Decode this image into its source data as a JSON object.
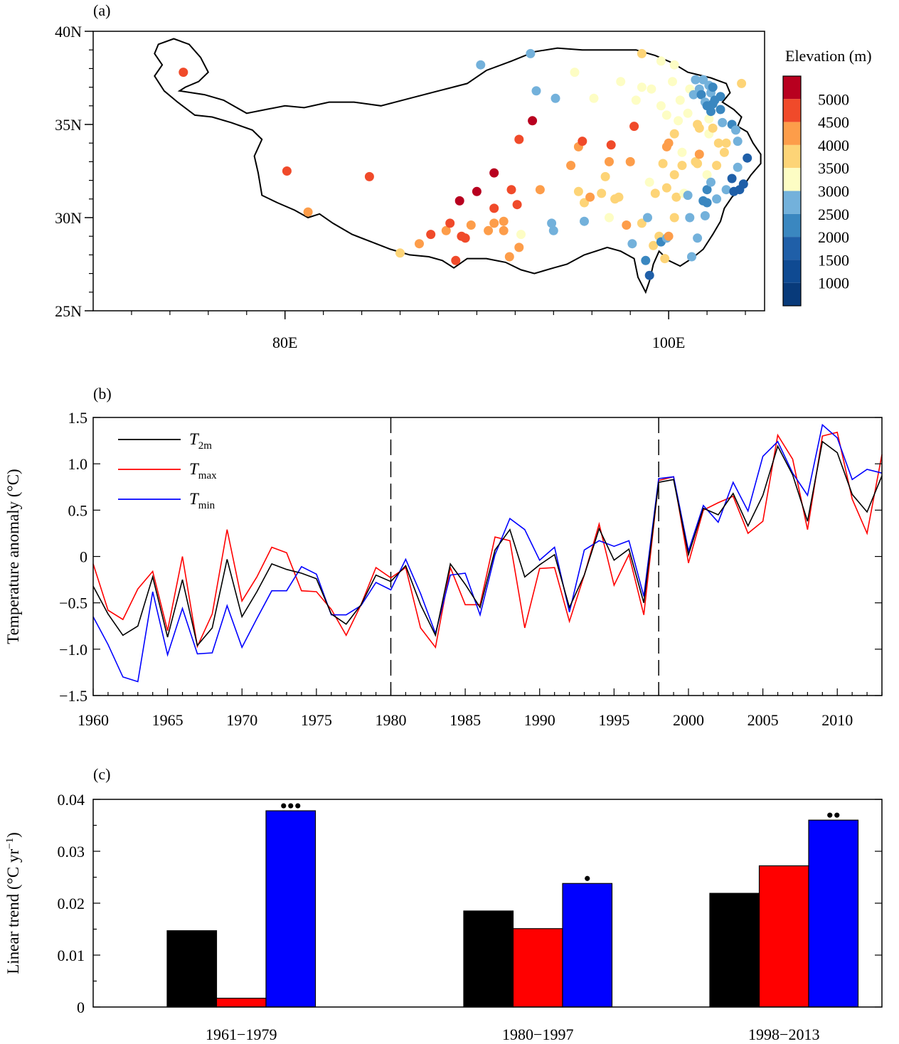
{
  "panel_labels": {
    "a": "(a)",
    "b": "(b)",
    "c": "(c)"
  },
  "chart_data": [
    {
      "type": "scatter",
      "panel": "(a)",
      "description_of_points": "station locations colored by elevation",
      "lat_ticks": [
        "25N",
        "30N",
        "35N",
        "40N"
      ],
      "lat_tick_values": [
        25,
        30,
        35,
        40
      ],
      "lon_ticks": [
        "80E",
        "100E"
      ],
      "lon_tick_values": [
        80,
        100
      ],
      "xlim": [
        70,
        105
      ],
      "ylim": [
        25,
        40
      ],
      "colorbar": {
        "title": "Elevation (m)",
        "labels": [
          "5000",
          "4500",
          "4000",
          "3500",
          "3000",
          "2500",
          "2000",
          "1500",
          "1000"
        ],
        "colors": [
          "#ffffff"
        ]
      },
      "stations": [
        [
          74.7,
          37.8,
          4500
        ],
        [
          80.1,
          32.5,
          4300
        ],
        [
          81.2,
          30.3,
          4000
        ],
        [
          84.4,
          32.2,
          4400
        ],
        [
          86.0,
          28.1,
          3500
        ],
        [
          87.0,
          28.6,
          4200
        ],
        [
          87.6,
          29.1,
          4300
        ],
        [
          88.4,
          29.3,
          4000
        ],
        [
          88.6,
          29.7,
          4300
        ],
        [
          88.9,
          27.7,
          4300
        ],
        [
          89.2,
          29.0,
          4500
        ],
        [
          89.7,
          29.6,
          3800
        ],
        [
          89.4,
          28.9,
          4300
        ],
        [
          89.1,
          30.9,
          4800
        ],
        [
          90.0,
          31.4,
          4800
        ],
        [
          90.2,
          38.2,
          2700
        ],
        [
          90.6,
          29.3,
          3800
        ],
        [
          90.9,
          30.5,
          4400
        ],
        [
          90.9,
          32.4,
          4800
        ],
        [
          90.9,
          29.7,
          3900
        ],
        [
          91.4,
          29.3,
          3800
        ],
        [
          91.4,
          29.8,
          3900
        ],
        [
          91.7,
          27.9,
          4200
        ],
        [
          91.8,
          31.5,
          4700
        ],
        [
          92.2,
          28.4,
          3800
        ],
        [
          92.3,
          29.1,
          3200
        ],
        [
          92.2,
          34.2,
          4700
        ],
        [
          92.9,
          35.2,
          4800
        ],
        [
          92.1,
          30.7,
          4300
        ],
        [
          92.8,
          38.8,
          2700
        ],
        [
          93.1,
          36.8,
          2700
        ],
        [
          93.3,
          31.5,
          3900
        ],
        [
          94.0,
          29.3,
          2500
        ],
        [
          93.9,
          29.7,
          2400
        ],
        [
          94.1,
          36.4,
          2700
        ],
        [
          94.9,
          32.8,
          4000
        ],
        [
          95.1,
          37.8,
          3200
        ],
        [
          95.3,
          31.4,
          3700
        ],
        [
          95.3,
          33.8,
          4200
        ],
        [
          95.5,
          34.1,
          4300
        ],
        [
          95.6,
          30.8,
          3600
        ],
        [
          95.6,
          29.8,
          2500
        ],
        [
          95.9,
          31.1,
          3800
        ],
        [
          96.1,
          36.4,
          2900
        ],
        [
          96.5,
          31.3,
          3700
        ],
        [
          96.7,
          32.2,
          3500
        ],
        [
          96.9,
          33.0,
          3800
        ],
        [
          97.0,
          33.9,
          4300
        ],
        [
          97.4,
          31.1,
          3300
        ],
        [
          96.9,
          30.0,
          3100
        ],
        [
          97.2,
          31.0,
          3500
        ],
        [
          97.5,
          37.3,
          2800
        ],
        [
          97.8,
          29.6,
          3800
        ],
        [
          98.0,
          33.0,
          4200
        ],
        [
          98.1,
          28.6,
          2300
        ],
        [
          98.3,
          36.3,
          3000
        ],
        [
          98.2,
          34.9,
          4300
        ],
        [
          98.6,
          37.0,
          2800
        ],
        [
          98.6,
          38.8,
          3300
        ],
        [
          99.0,
          31.9,
          3200
        ],
        [
          98.6,
          29.7,
          3300
        ],
        [
          98.9,
          30.0,
          2600
        ],
        [
          98.8,
          27.7,
          1900
        ],
        [
          99.0,
          26.9,
          1600
        ],
        [
          99.1,
          36.9,
          3000
        ],
        [
          99.3,
          31.3,
          3300
        ],
        [
          99.2,
          28.5,
          3300
        ],
        [
          99.5,
          29.0,
          3400
        ],
        [
          99.6,
          28.7,
          2200
        ],
        [
          99.7,
          32.9,
          3700
        ],
        [
          99.8,
          27.8,
          3300
        ],
        [
          99.9,
          28.9,
          2700
        ],
        [
          99.6,
          38.4,
          3200
        ],
        [
          99.6,
          36.0,
          3100
        ],
        [
          99.9,
          33.8,
          3800
        ],
        [
          99.9,
          35.5,
          3200
        ],
        [
          100.0,
          34.0,
          4000
        ],
        [
          100.0,
          29.0,
          3800
        ],
        [
          99.9,
          31.6,
          3300
        ],
        [
          100.2,
          37.3,
          3200
        ],
        [
          100.3,
          38.2,
          3000
        ],
        [
          100.3,
          32.3,
          3700
        ],
        [
          100.4,
          31.1,
          3300
        ],
        [
          100.3,
          34.5,
          3700
        ],
        [
          100.3,
          30.0,
          3600
        ],
        [
          100.5,
          35.2,
          3100
        ],
        [
          100.6,
          36.3,
          2800
        ],
        [
          100.7,
          33.5,
          3200
        ],
        [
          100.7,
          32.8,
          3600
        ],
        [
          100.8,
          31.3,
          3200
        ],
        [
          101.0,
          35.6,
          3200
        ],
        [
          101.1,
          30.0,
          2700
        ],
        [
          101.0,
          31.2,
          2600
        ],
        [
          101.1,
          36.9,
          3200
        ],
        [
          101.2,
          27.9,
          2400
        ],
        [
          101.3,
          36.6,
          2300
        ],
        [
          101.4,
          33.0,
          3300
        ],
        [
          101.5,
          35.0,
          3700
        ],
        [
          101.5,
          32.9,
          3400
        ],
        [
          101.6,
          36.9,
          2400
        ],
        [
          101.6,
          34.8,
          3600
        ],
        [
          101.6,
          33.4,
          4000
        ],
        [
          101.5,
          28.9,
          2400
        ],
        [
          101.7,
          36.6,
          2200
        ],
        [
          101.8,
          37.4,
          2700
        ],
        [
          101.8,
          30.9,
          1800
        ],
        [
          101.9,
          36.2,
          2400
        ],
        [
          101.9,
          30.1,
          2500
        ],
        [
          102.0,
          32.3,
          3100
        ],
        [
          102.0,
          31.5,
          1900
        ],
        [
          102.0,
          30.8,
          2200
        ],
        [
          102.1,
          34.5,
          3000
        ],
        [
          102.1,
          37.1,
          2500
        ],
        [
          102.1,
          35.3,
          3000
        ],
        [
          102.2,
          35.7,
          2200
        ],
        [
          102.2,
          36.7,
          2300
        ],
        [
          102.2,
          31.9,
          2600
        ],
        [
          102.3,
          34.8,
          3300
        ],
        [
          102.3,
          36.1,
          1900
        ],
        [
          102.3,
          37.0,
          2200
        ],
        [
          102.4,
          36.3,
          2000
        ],
        [
          102.5,
          32.8,
          3500
        ],
        [
          102.6,
          34.0,
          3500
        ],
        [
          102.5,
          31.0,
          2300
        ],
        [
          102.7,
          36.5,
          2200
        ],
        [
          102.7,
          35.8,
          2200
        ],
        [
          102.8,
          35.1,
          2600
        ],
        [
          102.9,
          33.5,
          3500
        ],
        [
          103.0,
          34.0,
          3600
        ],
        [
          103.0,
          31.5,
          2400
        ],
        [
          103.3,
          35.0,
          2100
        ],
        [
          103.3,
          32.1,
          1500
        ],
        [
          103.4,
          31.4,
          1700
        ],
        [
          103.5,
          34.7,
          2500
        ],
        [
          103.6,
          32.7,
          2600
        ],
        [
          103.6,
          34.1,
          2300
        ],
        [
          103.7,
          31.5,
          1500
        ],
        [
          103.9,
          31.8,
          1400
        ],
        [
          104.1,
          33.2,
          1300
        ],
        [
          103.8,
          37.2,
          3300
        ],
        [
          102.0,
          36.0,
          2100
        ],
        [
          101.4,
          37.4,
          2600
        ]
      ]
    },
    {
      "type": "line",
      "panel": "(b)",
      "ylabel": "Temperature anomaly (°C)",
      "xlim": [
        1960,
        2013
      ],
      "ylim": [
        -1.5,
        1.5
      ],
      "yticks": [
        "−1.5",
        "−1.0",
        "−0.5",
        "0",
        "0.5",
        "1.0",
        "1.5"
      ],
      "ytick_values": [
        -1.5,
        -1.0,
        -0.5,
        0,
        0.5,
        1.0,
        1.5
      ],
      "xticks": [
        "1960",
        "1965",
        "1970",
        "1975",
        "1980",
        "1985",
        "1990",
        "1995",
        "2000",
        "2005",
        "2010"
      ],
      "xtick_values": [
        1960,
        1965,
        1970,
        1975,
        1980,
        1985,
        1990,
        1995,
        2000,
        2005,
        2010
      ],
      "vlines": [
        1980,
        1998
      ],
      "legend_position": "top-left",
      "x": [
        1960,
        1961,
        1962,
        1963,
        1964,
        1965,
        1966,
        1967,
        1968,
        1969,
        1970,
        1971,
        1972,
        1973,
        1974,
        1975,
        1976,
        1977,
        1978,
        1979,
        1980,
        1981,
        1982,
        1983,
        1984,
        1985,
        1986,
        1987,
        1988,
        1989,
        1990,
        1991,
        1992,
        1993,
        1994,
        1995,
        1996,
        1997,
        1998,
        1999,
        2000,
        2001,
        2002,
        2003,
        2004,
        2005,
        2006,
        2007,
        2008,
        2009,
        2010,
        2011,
        2012,
        2013
      ],
      "series": [
        {
          "name": "T",
          "sub": "2m",
          "color": "#000000",
          "values": [
            -0.32,
            -0.62,
            -0.85,
            -0.75,
            -0.22,
            -0.87,
            -0.25,
            -0.96,
            -0.77,
            -0.03,
            -0.65,
            -0.38,
            -0.08,
            -0.14,
            -0.18,
            -0.24,
            -0.62,
            -0.73,
            -0.52,
            -0.2,
            -0.27,
            -0.1,
            -0.52,
            -0.85,
            -0.08,
            -0.3,
            -0.55,
            0.07,
            0.29,
            -0.22,
            -0.09,
            0.02,
            -0.55,
            -0.2,
            0.3,
            -0.04,
            0.08,
            -0.5,
            0.8,
            0.83,
            0.02,
            0.52,
            0.45,
            0.68,
            0.33,
            0.66,
            1.19,
            0.88,
            0.38,
            1.24,
            1.12,
            0.67,
            0.48,
            0.87
          ]
        },
        {
          "name": "T",
          "sub": "max",
          "color": "#ff0000",
          "values": [
            -0.08,
            -0.58,
            -0.68,
            -0.35,
            -0.16,
            -0.8,
            0.0,
            -0.97,
            -0.62,
            0.29,
            -0.48,
            -0.22,
            0.1,
            0.04,
            -0.37,
            -0.38,
            -0.57,
            -0.85,
            -0.52,
            -0.12,
            -0.23,
            -0.12,
            -0.77,
            -0.98,
            -0.12,
            -0.52,
            -0.52,
            0.21,
            0.17,
            -0.77,
            -0.13,
            -0.12,
            -0.7,
            -0.2,
            0.35,
            -0.31,
            0.02,
            -0.63,
            0.82,
            0.86,
            -0.07,
            0.5,
            0.58,
            0.65,
            0.25,
            0.38,
            1.31,
            1.05,
            0.29,
            1.3,
            1.34,
            0.62,
            0.25,
            1.1
          ]
        },
        {
          "name": "T",
          "sub": "min",
          "color": "#0000ff",
          "values": [
            -0.65,
            -0.95,
            -1.3,
            -1.35,
            -0.38,
            -1.06,
            -0.56,
            -1.05,
            -1.04,
            -0.53,
            -0.98,
            -0.67,
            -0.37,
            -0.37,
            -0.11,
            -0.19,
            -0.63,
            -0.63,
            -0.53,
            -0.28,
            -0.36,
            -0.03,
            -0.4,
            -0.83,
            -0.2,
            -0.18,
            -0.63,
            0.02,
            0.41,
            0.29,
            -0.04,
            0.1,
            -0.6,
            0.07,
            0.17,
            0.11,
            0.17,
            -0.43,
            0.84,
            0.86,
            0.06,
            0.55,
            0.37,
            0.8,
            0.49,
            1.08,
            1.24,
            0.9,
            0.66,
            1.42,
            1.28,
            0.83,
            0.94,
            0.9
          ]
        }
      ]
    },
    {
      "type": "bar",
      "panel": "(c)",
      "ylabel": "Linear trend (°C yr",
      "ylabel_sup": "−1",
      "ylabel_end": ")",
      "ylim": [
        0,
        0.04
      ],
      "yticks": [
        "0",
        "0.01",
        "0.02",
        "0.03",
        "0.04"
      ],
      "ytick_values": [
        0,
        0.01,
        0.02,
        0.03,
        0.04
      ],
      "categories": [
        "1961−1979",
        "1980−1997",
        "1998−2013"
      ],
      "series": [
        {
          "name": "T2m",
          "color": "#000000",
          "values": [
            0.0147,
            0.0185,
            0.0219
          ]
        },
        {
          "name": "Tmax",
          "color": "#ff0000",
          "values": [
            0.0017,
            0.0151,
            0.0272
          ]
        },
        {
          "name": "Tmin",
          "color": "#0000ff",
          "values": [
            0.0378,
            0.0238,
            0.036
          ]
        }
      ],
      "significance_dots": [
        [
          0,
          0,
          3
        ],
        [
          0,
          0,
          1
        ],
        [
          0,
          0,
          2
        ]
      ]
    }
  ]
}
